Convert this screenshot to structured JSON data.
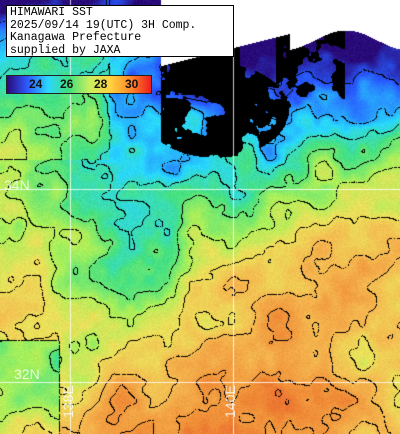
{
  "title_lines": [
    "HIMAWARI SST",
    "2025/09/14 19(UTC) 3H Comp.",
    "Kanagawa Prefecture",
    "supplied by JAXA"
  ],
  "legend": {
    "ticks": [
      "24",
      "26",
      "28",
      "30"
    ],
    "colors": [
      "#2b0a7a",
      "#2e5cff",
      "#2bd7ff",
      "#3fe07a",
      "#c8f060",
      "#ffd440",
      "#ff8a2a",
      "#ee1d1d"
    ]
  },
  "grid_labels": {
    "lat": [
      "34N",
      "32N"
    ],
    "lon": [
      "138E",
      "140E"
    ]
  },
  "colors": {
    "land": "#000000",
    "cloud": "#ffffff",
    "grid": "#ffffff",
    "contour": "#000000"
  }
}
